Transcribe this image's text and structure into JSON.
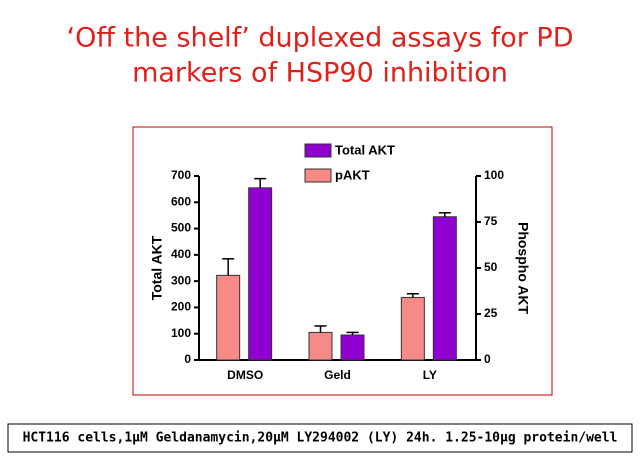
{
  "title": [
    "‘Off the shelf’ duplexed assays for PD",
    "markers of HSP90 inhibition"
  ],
  "footnote": "HCT116 cells,1µM Geldanamycin,20µM LY294002 (LY) 24h. 1.25-10µg protein/well",
  "chart_data": {
    "type": "bar",
    "categories": [
      "DMSO",
      "Geld",
      "LY"
    ],
    "y_label": "Total AKT",
    "y2_label": "Phospho AKT",
    "ylim": [
      0,
      700
    ],
    "yticks": [
      0,
      100,
      200,
      300,
      400,
      500,
      600,
      700
    ],
    "y2lim": [
      0,
      100
    ],
    "y2ticks": [
      0,
      25,
      50,
      75,
      100
    ],
    "series": [
      {
        "name": "Total AKT",
        "color": "#9000d0",
        "values": [
          655,
          95,
          545
        ],
        "errors": [
          35,
          10,
          15
        ]
      },
      {
        "name": "pAKT",
        "color": "#f58a86",
        "axis": "y2",
        "values": [
          46,
          15,
          34
        ],
        "errors": [
          9,
          3.5,
          2
        ]
      }
    ]
  }
}
